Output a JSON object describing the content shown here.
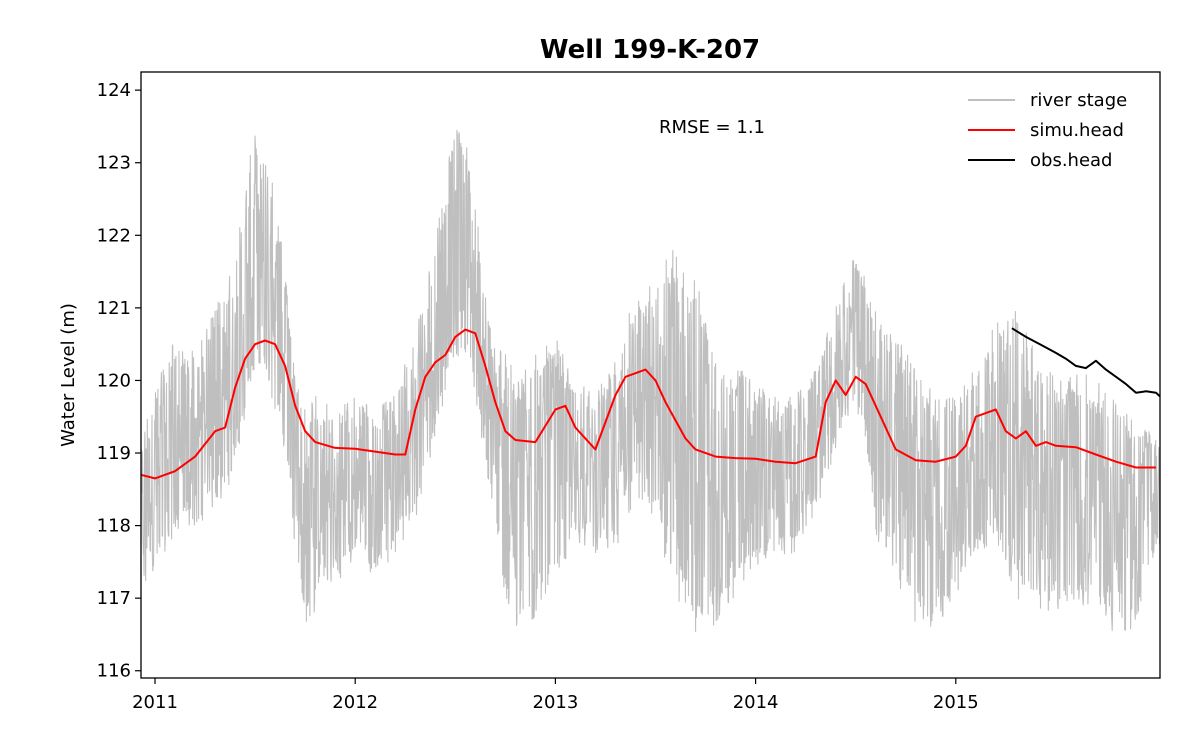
{
  "chart_data": {
    "type": "line",
    "title": "Well 199-K-207",
    "xlabel": "",
    "ylabel": "Water Level (m)",
    "xlim": [
      2010.93,
      2016.02
    ],
    "ylim": [
      115.9,
      124.25
    ],
    "x_ticks": [
      2011,
      2012,
      2013,
      2014,
      2015
    ],
    "x_tick_labels": [
      "2011",
      "2012",
      "2013",
      "2014",
      "2015"
    ],
    "y_ticks": [
      116,
      117,
      118,
      119,
      120,
      121,
      122,
      123,
      124
    ],
    "y_tick_labels": [
      "116",
      "117",
      "118",
      "119",
      "120",
      "121",
      "122",
      "123",
      "124"
    ],
    "grid": false,
    "legend_position": "top-right",
    "annotation": "RMSE = 1.1",
    "colors": {
      "river_stage": "#bfbfbf",
      "simu_head": "#ff0000",
      "obs_head": "#000000"
    },
    "series": [
      {
        "name": "river stage",
        "kind": "noisy-envelope",
        "x": [
          2010.93,
          2011.0,
          2011.1,
          2011.2,
          2011.3,
          2011.4,
          2011.45,
          2011.5,
          2011.55,
          2011.6,
          2011.65,
          2011.7,
          2011.75,
          2011.8,
          2011.9,
          2012.0,
          2012.1,
          2012.2,
          2012.3,
          2012.35,
          2012.4,
          2012.45,
          2012.5,
          2012.55,
          2012.6,
          2012.65,
          2012.7,
          2012.75,
          2012.8,
          2012.9,
          2013.0,
          2013.1,
          2013.2,
          2013.3,
          2013.4,
          2013.5,
          2013.55,
          2013.6,
          2013.7,
          2013.8,
          2013.9,
          2014.0,
          2014.1,
          2014.2,
          2014.3,
          2014.4,
          2014.45,
          2014.5,
          2014.55,
          2014.6,
          2014.7,
          2014.8,
          2014.9,
          2015.0,
          2015.1,
          2015.2,
          2015.3,
          2015.4,
          2015.5,
          2015.6,
          2015.7,
          2015.8,
          2015.9,
          2016.0
        ],
        "low": [
          117.0,
          117.4,
          117.9,
          118.0,
          118.2,
          118.7,
          119.4,
          120.2,
          120.0,
          119.6,
          118.9,
          117.5,
          116.6,
          116.8,
          117.2,
          117.5,
          117.3,
          117.6,
          118.0,
          118.6,
          119.2,
          119.8,
          120.3,
          120.4,
          119.8,
          118.8,
          118.0,
          116.8,
          116.5,
          116.7,
          117.2,
          117.8,
          117.6,
          117.6,
          118.3,
          118.0,
          117.3,
          116.9,
          116.5,
          116.6,
          117.0,
          117.4,
          117.6,
          117.6,
          118.2,
          119.0,
          119.4,
          119.6,
          119.2,
          117.8,
          117.3,
          116.6,
          116.6,
          117.0,
          117.6,
          117.8,
          117.0,
          116.8,
          116.8,
          117.0,
          116.7,
          116.5,
          116.6,
          117.7
        ],
        "high": [
          119.2,
          120.0,
          120.6,
          120.4,
          121.0,
          121.6,
          122.8,
          123.5,
          123.2,
          122.6,
          121.6,
          120.0,
          119.6,
          119.8,
          119.6,
          119.8,
          119.6,
          119.8,
          120.8,
          121.2,
          122.0,
          122.6,
          123.9,
          123.3,
          122.6,
          121.2,
          120.4,
          120.6,
          120.0,
          120.4,
          120.6,
          120.0,
          119.8,
          120.4,
          121.2,
          121.4,
          121.8,
          122.0,
          121.4,
          120.6,
          120.2,
          120.0,
          119.8,
          119.8,
          120.2,
          121.0,
          121.5,
          121.8,
          121.4,
          121.0,
          120.6,
          120.2,
          119.8,
          119.8,
          120.2,
          120.8,
          121.0,
          120.4,
          120.0,
          120.2,
          120.0,
          119.8,
          119.4,
          119.3
        ]
      },
      {
        "name": "simu.head",
        "x": [
          2010.93,
          2011.0,
          2011.1,
          2011.2,
          2011.3,
          2011.35,
          2011.4,
          2011.45,
          2011.5,
          2011.55,
          2011.6,
          2011.65,
          2011.7,
          2011.75,
          2011.8,
          2011.9,
          2012.0,
          2012.1,
          2012.2,
          2012.25,
          2012.3,
          2012.35,
          2012.4,
          2012.45,
          2012.5,
          2012.55,
          2012.6,
          2012.65,
          2012.7,
          2012.75,
          2012.8,
          2012.9,
          2013.0,
          2013.05,
          2013.1,
          2013.2,
          2013.3,
          2013.35,
          2013.4,
          2013.45,
          2013.5,
          2013.55,
          2013.6,
          2013.65,
          2013.7,
          2013.8,
          2013.9,
          2014.0,
          2014.1,
          2014.2,
          2014.3,
          2014.35,
          2014.4,
          2014.45,
          2014.5,
          2014.55,
          2014.6,
          2014.65,
          2014.7,
          2014.8,
          2014.9,
          2015.0,
          2015.05,
          2015.1,
          2015.15,
          2015.2,
          2015.25,
          2015.3,
          2015.35,
          2015.4,
          2015.45,
          2015.5,
          2015.6,
          2015.7,
          2015.8,
          2015.9,
          2016.0
        ],
        "y": [
          118.7,
          118.65,
          118.75,
          118.95,
          119.3,
          119.35,
          119.9,
          120.3,
          120.5,
          120.55,
          120.5,
          120.2,
          119.65,
          119.3,
          119.15,
          119.07,
          119.06,
          119.02,
          118.98,
          118.98,
          119.6,
          120.05,
          120.25,
          120.35,
          120.6,
          120.7,
          120.65,
          120.2,
          119.7,
          119.3,
          119.18,
          119.15,
          119.6,
          119.65,
          119.35,
          119.05,
          119.8,
          120.05,
          120.1,
          120.15,
          120.0,
          119.7,
          119.45,
          119.2,
          119.05,
          118.95,
          118.93,
          118.92,
          118.88,
          118.86,
          118.95,
          119.7,
          120.0,
          119.8,
          120.05,
          119.95,
          119.65,
          119.35,
          119.05,
          118.9,
          118.88,
          118.95,
          119.1,
          119.5,
          119.55,
          119.6,
          119.3,
          119.2,
          119.3,
          119.1,
          119.15,
          119.1,
          119.08,
          118.98,
          118.88,
          118.8,
          118.8
        ]
      },
      {
        "name": "obs.head",
        "x": [
          2015.28,
          2015.35,
          2015.42,
          2015.5,
          2015.55,
          2015.6,
          2015.65,
          2015.7,
          2015.75,
          2015.8,
          2015.85,
          2015.9,
          2015.95,
          2016.0,
          2016.02
        ],
        "y": [
          120.72,
          120.6,
          120.5,
          120.38,
          120.3,
          120.2,
          120.17,
          120.27,
          120.15,
          120.05,
          119.95,
          119.83,
          119.85,
          119.83,
          119.78
        ]
      }
    ]
  }
}
